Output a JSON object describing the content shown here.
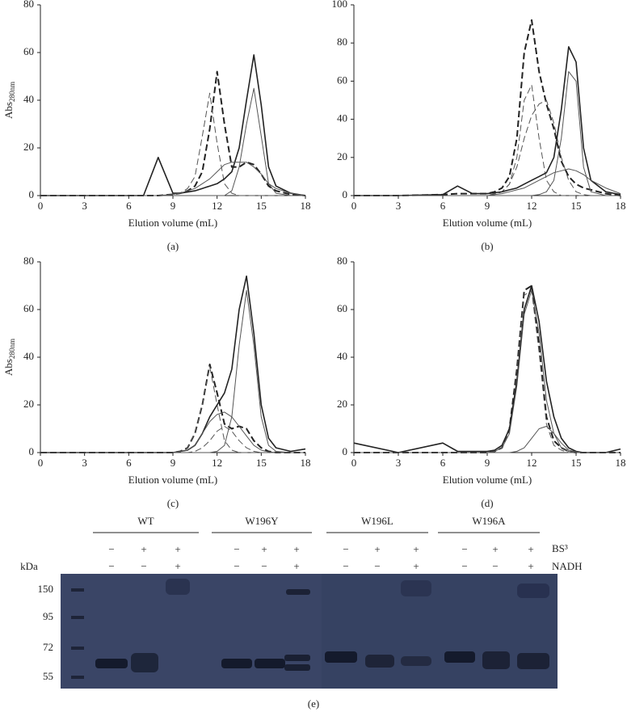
{
  "chart_data": [
    {
      "type": "line",
      "caption": "(a)",
      "ylabel": "Abs",
      "ylabel_sub": "280nm",
      "xlabel": "Elution volume (mL)",
      "x": [
        0,
        3,
        6,
        7,
        8,
        9,
        9.5,
        10,
        10.5,
        11,
        11.5,
        12,
        12.5,
        13,
        13.5,
        14,
        14.5,
        15,
        15.5,
        16,
        17,
        18
      ],
      "xlim": [
        0,
        18
      ],
      "xticks": [
        0,
        3,
        6,
        9,
        12,
        15,
        18
      ],
      "ylim": [
        0,
        80
      ],
      "yticks": [
        0,
        20,
        40,
        60,
        80
      ],
      "series": [
        {
          "color": "#222",
          "dash": true,
          "width": 2,
          "values": [
            0,
            0,
            0,
            0,
            0,
            0.5,
            1,
            2,
            4,
            10,
            28,
            52,
            30,
            12,
            12,
            14,
            13,
            9,
            4,
            2,
            0.5,
            0
          ]
        },
        {
          "color": "#555",
          "dash": true,
          "width": 1,
          "values": [
            0,
            0,
            0,
            0,
            0,
            0.5,
            1,
            3,
            8,
            25,
            43,
            22,
            5,
            1,
            0,
            0,
            0,
            0,
            0,
            0,
            0,
            0
          ]
        },
        {
          "color": "#222",
          "dash": false,
          "width": 1.6,
          "values": [
            0,
            0,
            0,
            0,
            16,
            1,
            1,
            1.5,
            2,
            3,
            4,
            5,
            7,
            10,
            20,
            40,
            59,
            38,
            12,
            4,
            1,
            0
          ]
        },
        {
          "color": "#555",
          "dash": false,
          "width": 1,
          "values": [
            0,
            0,
            0,
            0,
            0,
            0,
            0,
            0,
            0,
            0,
            0,
            0,
            0,
            2,
            12,
            30,
            45,
            25,
            5,
            1,
            0,
            0
          ]
        },
        {
          "color": "#555",
          "dash": false,
          "width": 1,
          "values": [
            0,
            0,
            0,
            0,
            0,
            0.5,
            1,
            2,
            3,
            5,
            7,
            10,
            13,
            14,
            14,
            14,
            12,
            9,
            5,
            3,
            1,
            0
          ]
        }
      ]
    },
    {
      "type": "line",
      "caption": "(b)",
      "xlabel": "Elution volume (mL)",
      "x": [
        0,
        3,
        6,
        7,
        8,
        9,
        9.5,
        10,
        10.5,
        11,
        11.5,
        12,
        12.5,
        13,
        13.5,
        14,
        14.5,
        15,
        15.5,
        16,
        17,
        18
      ],
      "xlim": [
        0,
        18
      ],
      "xticks": [
        0,
        3,
        6,
        9,
        12,
        15,
        18
      ],
      "ylim": [
        0,
        100
      ],
      "yticks": [
        0,
        20,
        40,
        60,
        80,
        100
      ],
      "series": [
        {
          "color": "#222",
          "dash": true,
          "width": 2,
          "values": [
            0,
            0,
            0.5,
            1,
            1,
            1,
            2,
            4,
            10,
            30,
            75,
            92,
            65,
            48,
            35,
            18,
            10,
            6,
            4,
            3,
            1,
            0
          ]
        },
        {
          "color": "#555",
          "dash": true,
          "width": 1,
          "values": [
            0,
            0,
            0,
            0,
            0,
            0,
            1,
            2,
            6,
            20,
            50,
            58,
            30,
            8,
            2,
            0,
            0,
            0,
            0,
            0,
            0,
            0
          ]
        },
        {
          "color": "#555",
          "dash": true,
          "width": 1,
          "values": [
            0,
            0,
            0,
            0,
            0,
            0,
            0.5,
            2,
            6,
            15,
            30,
            42,
            48,
            50,
            38,
            20,
            8,
            2,
            0.5,
            0,
            0,
            0
          ]
        },
        {
          "color": "#222",
          "dash": false,
          "width": 1.6,
          "values": [
            0,
            0,
            0.5,
            5,
            1,
            1,
            1.5,
            2,
            3,
            4,
            6,
            8,
            10,
            12,
            20,
            45,
            78,
            70,
            25,
            8,
            2,
            0.5
          ]
        },
        {
          "color": "#555",
          "dash": false,
          "width": 1,
          "values": [
            0,
            0,
            0,
            0,
            0,
            0,
            0,
            0,
            0,
            0,
            0,
            0,
            0.5,
            2,
            8,
            30,
            65,
            60,
            15,
            2,
            0,
            0
          ]
        },
        {
          "color": "#555",
          "dash": false,
          "width": 1,
          "values": [
            0,
            0,
            0,
            0,
            0,
            0,
            0.5,
            1,
            2,
            3,
            4,
            6,
            8,
            10,
            12,
            13,
            14,
            13,
            11,
            8,
            4,
            1
          ]
        }
      ]
    },
    {
      "type": "line",
      "caption": "(c)",
      "ylabel": "Abs",
      "ylabel_sub": "280nm",
      "xlabel": "Elution volume (mL)",
      "x": [
        0,
        3,
        6,
        7,
        8,
        9,
        9.5,
        10,
        10.5,
        11,
        11.5,
        12,
        12.5,
        13,
        13.5,
        14,
        14.5,
        15,
        15.5,
        16,
        17,
        18
      ],
      "xlim": [
        0,
        18
      ],
      "xticks": [
        0,
        3,
        6,
        9,
        12,
        15,
        18
      ],
      "ylim": [
        0,
        80
      ],
      "yticks": [
        0,
        20,
        40,
        60,
        80
      ],
      "series": [
        {
          "color": "#222",
          "dash": true,
          "width": 2,
          "values": [
            0,
            0,
            0,
            0,
            0,
            0,
            0.5,
            2,
            8,
            20,
            37,
            25,
            12,
            10,
            11,
            10,
            5,
            2,
            0.5,
            0,
            0,
            0
          ]
        },
        {
          "color": "#555",
          "dash": true,
          "width": 1,
          "values": [
            0,
            0,
            0,
            0,
            0,
            0,
            0.5,
            2,
            8,
            20,
            36,
            20,
            5,
            1,
            0,
            0,
            0,
            0,
            0,
            0,
            0,
            0
          ]
        },
        {
          "color": "#555",
          "dash": true,
          "width": 1,
          "values": [
            0,
            0,
            0,
            0,
            0,
            0,
            0,
            0,
            0.5,
            2,
            5,
            9,
            11,
            9,
            5,
            2,
            0.5,
            0,
            0,
            0,
            0,
            0
          ]
        },
        {
          "color": "#222",
          "dash": false,
          "width": 1.6,
          "values": [
            0,
            0,
            0,
            0,
            0,
            0,
            0.5,
            1,
            3,
            8,
            15,
            20,
            25,
            35,
            60,
            74,
            50,
            20,
            6,
            2,
            0.5,
            1.5
          ]
        },
        {
          "color": "#555",
          "dash": false,
          "width": 1,
          "values": [
            0,
            0,
            0,
            0,
            0,
            0,
            0,
            0,
            0,
            0,
            0,
            0.5,
            3,
            15,
            45,
            68,
            45,
            15,
            3,
            0.5,
            0,
            0
          ]
        },
        {
          "color": "#555",
          "dash": false,
          "width": 1,
          "values": [
            0,
            0,
            0,
            0,
            0,
            0,
            0.5,
            1,
            3,
            8,
            13,
            16,
            17,
            15,
            11,
            7,
            3,
            1,
            0.3,
            0,
            0,
            0
          ]
        }
      ]
    },
    {
      "type": "line",
      "caption": "(d)",
      "xlabel": "Elution volume (mL)",
      "x": [
        0,
        3,
        6,
        7,
        8,
        9,
        9.5,
        10,
        10.5,
        11,
        11.5,
        12,
        12.5,
        13,
        13.5,
        14,
        14.5,
        15,
        15.5,
        16,
        17,
        18
      ],
      "xlim": [
        0,
        18
      ],
      "xticks": [
        0,
        3,
        6,
        9,
        12,
        15,
        18
      ],
      "ylim": [
        0,
        80
      ],
      "yticks": [
        0,
        20,
        40,
        60,
        80
      ],
      "series": [
        {
          "color": "#222",
          "dash": true,
          "width": 2,
          "values": [
            0,
            0,
            0,
            0,
            0,
            0,
            0.5,
            2,
            10,
            35,
            68,
            70,
            45,
            15,
            5,
            2,
            0.5,
            0,
            0,
            0,
            0,
            0
          ]
        },
        {
          "color": "#555",
          "dash": true,
          "width": 1,
          "values": [
            0,
            0,
            0,
            0,
            0,
            0,
            0.5,
            2,
            9,
            33,
            66,
            68,
            42,
            12,
            3,
            1,
            0,
            0,
            0,
            0,
            0,
            0
          ]
        },
        {
          "color": "#222",
          "dash": false,
          "width": 1.6,
          "values": [
            4,
            0,
            4,
            0.5,
            0.5,
            0.5,
            1,
            3,
            10,
            30,
            60,
            70,
            55,
            30,
            15,
            6,
            2,
            0.5,
            0,
            0,
            0,
            1.5
          ]
        },
        {
          "color": "#555",
          "dash": false,
          "width": 1,
          "values": [
            0,
            0,
            0,
            0,
            0,
            0,
            0.5,
            2,
            8,
            28,
            58,
            68,
            50,
            22,
            8,
            2,
            0.5,
            0,
            0,
            0,
            0,
            0
          ]
        },
        {
          "color": "#555",
          "dash": false,
          "width": 1,
          "values": [
            0,
            0,
            0,
            0,
            0,
            0,
            0,
            0,
            0,
            0.5,
            2,
            6,
            10,
            11,
            8,
            4,
            1,
            0.3,
            0,
            0,
            0,
            0
          ]
        }
      ]
    }
  ],
  "gel": {
    "caption": "(e)",
    "groups": [
      "WT",
      "W196Y",
      "W196L",
      "W196A"
    ],
    "bs3_label": "BS³",
    "nadh_label": "NADH",
    "unit": "kDa",
    "bs3": [
      "−",
      "+",
      "+",
      "−",
      "+",
      "+",
      "−",
      "+",
      "+",
      "−",
      "+",
      "+"
    ],
    "nadh": [
      "−",
      "−",
      "+",
      "−",
      "−",
      "+",
      "−",
      "−",
      "+",
      "−",
      "−",
      "+"
    ],
    "markers": [
      "150",
      "95",
      "72",
      "55"
    ]
  }
}
